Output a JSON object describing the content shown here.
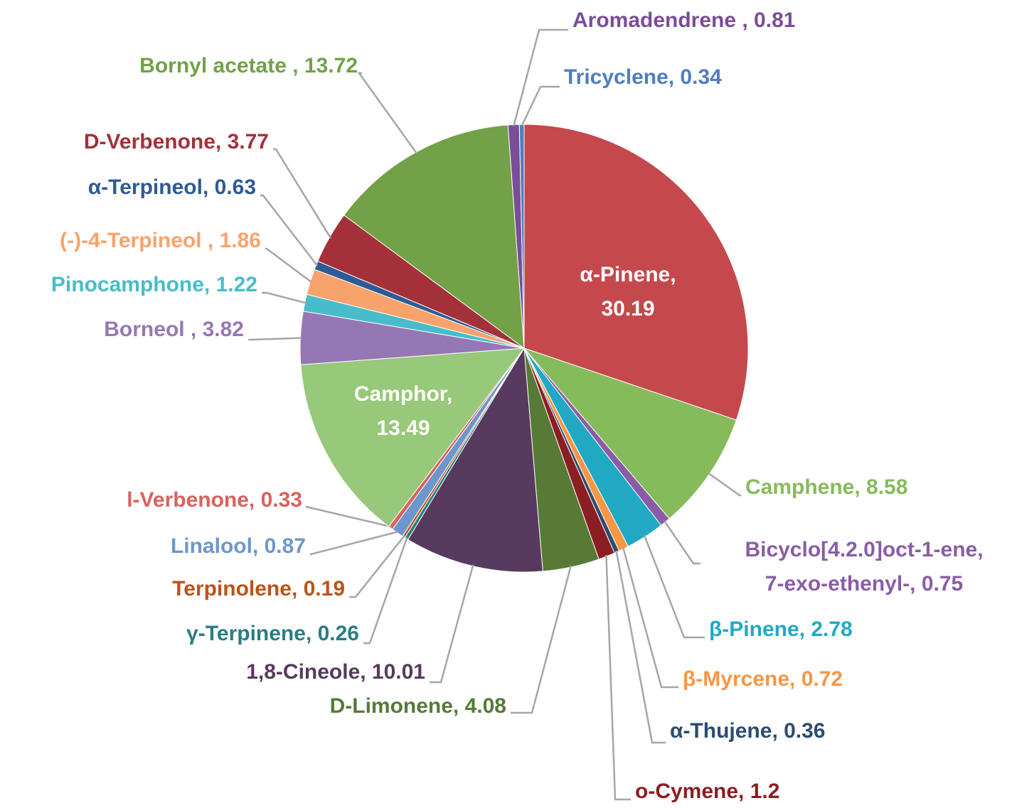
{
  "chart_data": {
    "type": "pie",
    "values": [
      30.19,
      8.58,
      0.75,
      2.78,
      0.72,
      0.36,
      1.2,
      4.08,
      10.01,
      0.26,
      0.19,
      0.87,
      0.33,
      13.49,
      3.82,
      1.22,
      1.86,
      0.63,
      3.77,
      13.72,
      0.81,
      0.34
    ],
    "value_labels": [
      "α-Pinene,\n30.19",
      "Camphene, 8.58",
      "Bicyclo[4.2.0]oct-1-ene,\n7-exo-ethenyl-, 0.75",
      "β-Pinene, 2.78",
      "β-Myrcene, 0.72",
      "α-Thujene, 0.36",
      "o-Cymene, 1.2",
      "D-Limonene, 4.08",
      "1,8-Cineole, 10.01",
      "γ-Terpinene, 0.26",
      "Terpinolene, 0.19",
      "Linalool, 0.87",
      "l-Verbenone, 0.33",
      "Camphor,\n13.49",
      "Borneol , 3.82",
      "Pinocamphone, 1.22",
      "(-)-4-Terpineol , 1.86",
      "α-Terpineol, 0.63",
      "D-Verbenone, 3.77",
      "Bornyl acetate , 13.72",
      "Aromadendrene , 0.81",
      "Tricyclene, 0.34"
    ],
    "colors": [
      "#c5484d",
      "#86bb5b",
      "#8a5ca8",
      "#21a9c4",
      "#f79646",
      "#2c4c6e",
      "#8b1e23",
      "#577a37",
      "#573a5e",
      "#2a7d85",
      "#b9541a",
      "#6d97cc",
      "#d9625e",
      "#98c87a",
      "#9677b5",
      "#48bccb",
      "#f8a36c",
      "#2f5b95",
      "#a4303a",
      "#72a147",
      "#7a4d98",
      "#4f7ec0"
    ]
  }
}
